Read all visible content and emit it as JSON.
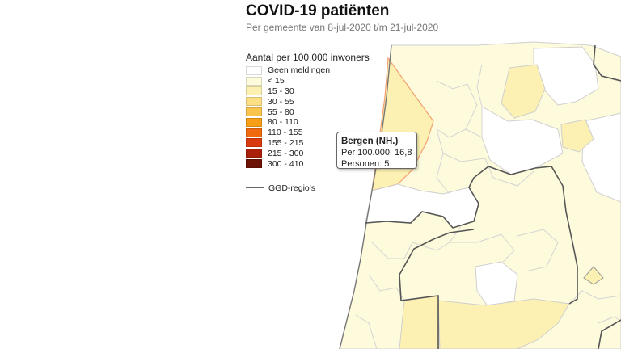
{
  "header": {
    "title": "COVID-19 patiënten",
    "subtitle": "Per gemeente van 8-jul-2020 t/m 21-jul-2020"
  },
  "legend": {
    "title": "Aantal per 100.000 inwoners",
    "items": [
      {
        "label": "Geen meldingen",
        "color": "#ffffff"
      },
      {
        "label": "< 15",
        "color": "#fdfbdc"
      },
      {
        "label": "15 - 30",
        "color": "#fcf1b3"
      },
      {
        "label": "30 - 55",
        "color": "#fbdf85"
      },
      {
        "label": "55 - 80",
        "color": "#f9c34c"
      },
      {
        "label": "80 - 110",
        "color": "#f69e16"
      },
      {
        "label": "110 - 155",
        "color": "#f06a10"
      },
      {
        "label": "155 - 215",
        "color": "#d93a0d"
      },
      {
        "label": "215 - 300",
        "color": "#a81f0a"
      },
      {
        "label": "300 - 410",
        "color": "#6d1306"
      }
    ],
    "ggd_label": "GGD-regio's"
  },
  "tooltip": {
    "name": "Bergen (NH.)",
    "rate_text": "Per 100.000: 16,8",
    "persons_text": "Personen: 5"
  },
  "map_colors": {
    "none": "#ffffff",
    "lt15": "#fdfbdc",
    "c15_30": "#fcf1b3",
    "highlight_stroke": "#f4a070",
    "border": "#cfcfcf",
    "ggd_border": "#555555"
  }
}
